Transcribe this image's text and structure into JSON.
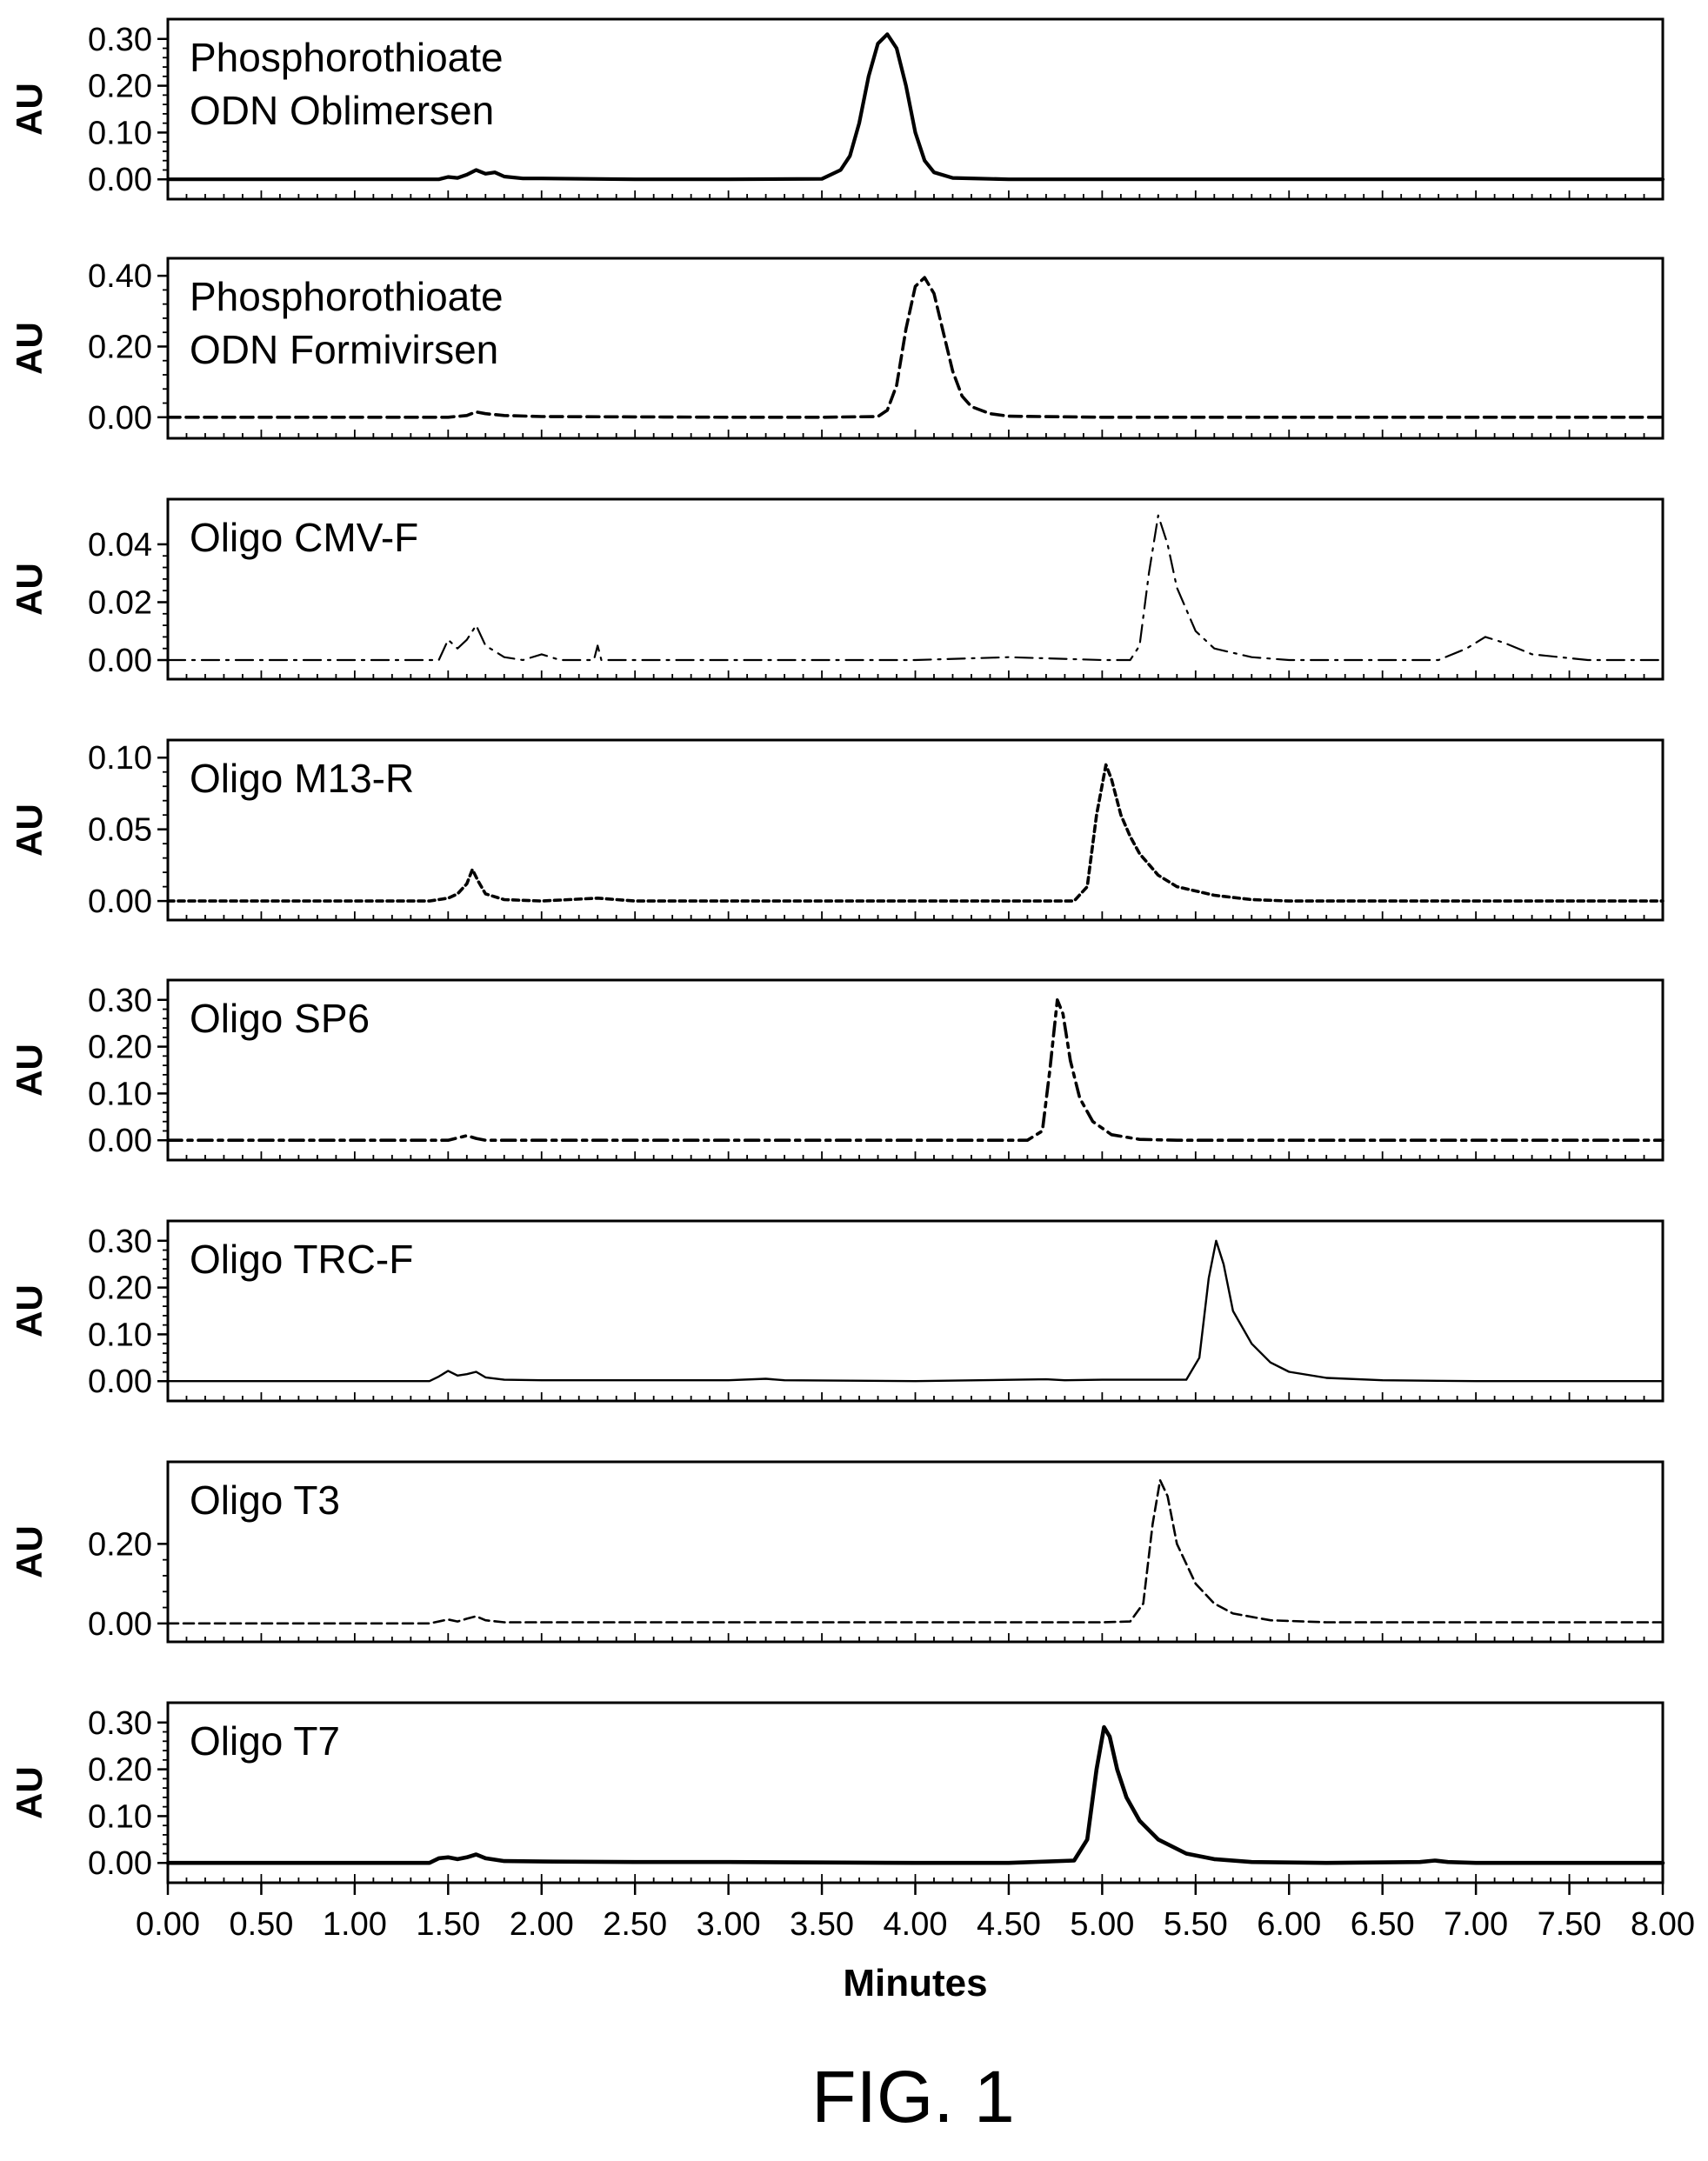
{
  "figure": {
    "caption": "FIG. 1"
  },
  "chart_data": [
    {
      "type": "line",
      "title": [
        "Phosphorothioate",
        "ODN Oblimersen"
      ],
      "ylabel": "AU",
      "yticks": [
        0.0,
        0.1,
        0.2,
        0.3
      ],
      "ytick_labels": [
        "0.00",
        "0.10",
        "0.20",
        "0.30"
      ],
      "ylim": [
        -0.02,
        0.32
      ],
      "line_style": "solid",
      "series": [
        {
          "x": [
            0.0,
            1.45,
            1.5,
            1.55,
            1.6,
            1.65,
            1.7,
            1.75,
            1.8,
            1.9,
            2.0,
            2.5,
            3.0,
            3.5,
            3.6,
            3.65,
            3.7,
            3.75,
            3.8,
            3.85,
            3.9,
            3.95,
            4.0,
            4.05,
            4.1,
            4.2,
            4.5,
            5.0,
            6.0,
            7.0,
            8.0
          ],
          "y": [
            0.0,
            0.0,
            0.005,
            0.003,
            0.01,
            0.02,
            0.012,
            0.015,
            0.006,
            0.002,
            0.002,
            0.0,
            0.0,
            0.001,
            0.02,
            0.05,
            0.12,
            0.22,
            0.29,
            0.31,
            0.28,
            0.2,
            0.1,
            0.04,
            0.015,
            0.003,
            0.0,
            0.0,
            0.0,
            0.0,
            0.0
          ]
        }
      ]
    },
    {
      "type": "line",
      "title": [
        "Phosphorothioate",
        "ODN Formivirsen"
      ],
      "ylabel": "AU",
      "yticks": [
        0.0,
        0.2,
        0.4
      ],
      "ytick_labels": [
        "0.00",
        "0.20",
        "0.40"
      ],
      "ylim": [
        -0.03,
        0.42
      ],
      "line_style": "dashed",
      "series": [
        {
          "x": [
            0.0,
            1.5,
            1.6,
            1.65,
            1.7,
            1.8,
            2.0,
            2.5,
            3.0,
            3.5,
            3.8,
            3.85,
            3.9,
            3.95,
            4.0,
            4.05,
            4.1,
            4.15,
            4.2,
            4.25,
            4.3,
            4.4,
            4.5,
            5.0,
            6.0,
            7.0,
            8.0
          ],
          "y": [
            0.0,
            0.0,
            0.005,
            0.015,
            0.01,
            0.005,
            0.002,
            0.001,
            0.0,
            0.0,
            0.002,
            0.02,
            0.09,
            0.25,
            0.37,
            0.395,
            0.35,
            0.24,
            0.13,
            0.06,
            0.03,
            0.01,
            0.003,
            0.0,
            0.0,
            0.0,
            0.0
          ]
        }
      ]
    },
    {
      "type": "line",
      "title": [
        "Oligo CMV-F"
      ],
      "ylabel": "AU",
      "yticks": [
        0.0,
        0.02,
        0.04
      ],
      "ytick_labels": [
        "0.00",
        "0.02",
        "0.04"
      ],
      "ylim": [
        -0.003,
        0.052
      ],
      "line_style": "dashdot",
      "series": [
        {
          "x": [
            0.0,
            1.4,
            1.45,
            1.5,
            1.55,
            1.6,
            1.65,
            1.7,
            1.75,
            1.8,
            1.9,
            2.0,
            2.05,
            2.1,
            2.28,
            2.3,
            2.32,
            3.0,
            4.0,
            4.5,
            5.0,
            5.15,
            5.2,
            5.25,
            5.3,
            5.35,
            5.4,
            5.5,
            5.6,
            5.8,
            6.0,
            6.5,
            6.8,
            6.95,
            7.05,
            7.15,
            7.3,
            7.6,
            8.0
          ],
          "y": [
            0.0,
            0.0,
            0.0,
            0.007,
            0.004,
            0.007,
            0.012,
            0.005,
            0.003,
            0.001,
            0.0,
            0.002,
            0.001,
            0.0,
            0.0,
            0.005,
            0.0,
            0.0,
            0.0,
            0.001,
            0.0,
            0.0,
            0.005,
            0.03,
            0.05,
            0.04,
            0.025,
            0.01,
            0.004,
            0.001,
            0.0,
            0.0,
            0.0,
            0.004,
            0.008,
            0.006,
            0.002,
            0.0,
            0.0
          ]
        }
      ]
    },
    {
      "type": "line",
      "title": [
        "Oligo M13-R"
      ],
      "ylabel": "AU",
      "yticks": [
        0.0,
        0.05,
        0.1
      ],
      "ytick_labels": [
        "0.00",
        "0.05",
        "0.10"
      ],
      "ylim": [
        -0.006,
        0.105
      ],
      "line_style": "dotted",
      "series": [
        {
          "x": [
            0.0,
            1.4,
            1.5,
            1.55,
            1.6,
            1.63,
            1.66,
            1.7,
            1.8,
            2.0,
            2.3,
            2.5,
            3.0,
            4.0,
            4.85,
            4.92,
            4.97,
            5.02,
            5.05,
            5.1,
            5.15,
            5.2,
            5.3,
            5.4,
            5.6,
            5.8,
            6.0,
            7.0,
            8.0
          ],
          "y": [
            0.0,
            0.0,
            0.002,
            0.005,
            0.012,
            0.022,
            0.014,
            0.005,
            0.001,
            0.0,
            0.002,
            0.0,
            0.0,
            0.0,
            0.0,
            0.01,
            0.06,
            0.095,
            0.085,
            0.06,
            0.045,
            0.033,
            0.018,
            0.01,
            0.004,
            0.001,
            0.0,
            0.0,
            0.0
          ]
        }
      ]
    },
    {
      "type": "line",
      "title": [
        "Oligo SP6"
      ],
      "ylabel": "AU",
      "yticks": [
        0.0,
        0.1,
        0.2,
        0.3
      ],
      "ytick_labels": [
        "0.00",
        "0.10",
        "0.20",
        "0.30"
      ],
      "ylim": [
        -0.02,
        0.32
      ],
      "line_style": "dashdot-heavy",
      "series": [
        {
          "x": [
            0.0,
            1.5,
            1.6,
            1.65,
            1.7,
            2.0,
            3.0,
            4.0,
            4.6,
            4.68,
            4.72,
            4.76,
            4.79,
            4.83,
            4.88,
            4.95,
            5.05,
            5.2,
            5.4,
            6.0,
            7.0,
            8.0
          ],
          "y": [
            0.0,
            0.0,
            0.01,
            0.004,
            0.0,
            0.0,
            0.0,
            0.0,
            0.0,
            0.02,
            0.15,
            0.3,
            0.27,
            0.17,
            0.09,
            0.04,
            0.012,
            0.002,
            0.0,
            0.0,
            0.0,
            0.0
          ]
        }
      ]
    },
    {
      "type": "line",
      "title": [
        "Oligo TRC-F"
      ],
      "ylabel": "AU",
      "yticks": [
        0.0,
        0.1,
        0.2,
        0.3
      ],
      "ytick_labels": [
        "0.00",
        "0.10",
        "0.20",
        "0.30"
      ],
      "ylim": [
        -0.02,
        0.32
      ],
      "line_style": "solid-thin",
      "series": [
        {
          "x": [
            0.0,
            1.4,
            1.45,
            1.5,
            1.55,
            1.6,
            1.65,
            1.7,
            1.8,
            2.0,
            2.5,
            3.0,
            3.2,
            3.3,
            4.0,
            4.7,
            4.8,
            5.0,
            5.45,
            5.52,
            5.57,
            5.61,
            5.65,
            5.7,
            5.8,
            5.9,
            6.0,
            6.2,
            6.5,
            7.0,
            8.0
          ],
          "y": [
            0.0,
            0.0,
            0.01,
            0.022,
            0.012,
            0.015,
            0.02,
            0.008,
            0.003,
            0.002,
            0.002,
            0.002,
            0.005,
            0.002,
            0.0,
            0.004,
            0.002,
            0.003,
            0.003,
            0.05,
            0.22,
            0.3,
            0.25,
            0.15,
            0.08,
            0.04,
            0.02,
            0.007,
            0.002,
            0.0,
            0.0
          ]
        }
      ]
    },
    {
      "type": "line",
      "title": [
        "Oligo T3"
      ],
      "ylabel": "AU",
      "yticks": [
        0.0,
        0.2
      ],
      "ytick_labels": [
        "0.00",
        "0.20"
      ],
      "ylim": [
        -0.02,
        0.38
      ],
      "line_style": "dashed-fine",
      "series": [
        {
          "x": [
            0.0,
            1.4,
            1.5,
            1.55,
            1.6,
            1.65,
            1.7,
            1.8,
            2.0,
            3.0,
            4.0,
            5.0,
            5.15,
            5.22,
            5.27,
            5.31,
            5.35,
            5.4,
            5.5,
            5.6,
            5.7,
            5.9,
            6.2,
            7.0,
            8.0
          ],
          "y": [
            0.0,
            0.0,
            0.01,
            0.005,
            0.012,
            0.018,
            0.008,
            0.003,
            0.003,
            0.003,
            0.003,
            0.003,
            0.005,
            0.05,
            0.25,
            0.36,
            0.32,
            0.2,
            0.1,
            0.05,
            0.025,
            0.008,
            0.003,
            0.003,
            0.003
          ]
        }
      ]
    },
    {
      "type": "line",
      "title": [
        "Oligo T7"
      ],
      "ylabel": "AU",
      "xlabel": "Minutes",
      "yticks": [
        0.0,
        0.1,
        0.2,
        0.3
      ],
      "ytick_labels": [
        "0.00",
        "0.10",
        "0.20",
        "0.30"
      ],
      "ylim": [
        -0.02,
        0.32
      ],
      "line_style": "solid-heavy",
      "series": [
        {
          "x": [
            0.0,
            1.4,
            1.45,
            1.5,
            1.55,
            1.6,
            1.65,
            1.7,
            1.8,
            2.0,
            2.5,
            3.0,
            3.5,
            4.0,
            4.5,
            4.85,
            4.92,
            4.97,
            5.01,
            5.04,
            5.08,
            5.13,
            5.2,
            5.3,
            5.45,
            5.6,
            5.8,
            6.2,
            6.7,
            6.78,
            6.85,
            7.0,
            8.0
          ],
          "y": [
            0.0,
            0.0,
            0.01,
            0.012,
            0.008,
            0.012,
            0.018,
            0.01,
            0.004,
            0.003,
            0.002,
            0.002,
            0.001,
            0.0,
            0.0,
            0.005,
            0.05,
            0.2,
            0.29,
            0.27,
            0.2,
            0.14,
            0.09,
            0.05,
            0.02,
            0.008,
            0.002,
            0.0,
            0.002,
            0.005,
            0.002,
            0.0,
            0.0
          ]
        }
      ]
    }
  ],
  "x_axis": {
    "xlim": [
      0.0,
      8.0
    ],
    "tick_labels": [
      "0.00",
      "0.50",
      "1.00",
      "1.50",
      "2.00",
      "2.50",
      "3.00",
      "3.50",
      "4.00",
      "4.50",
      "5.00",
      "5.50",
      "6.00",
      "6.50",
      "7.00",
      "7.50",
      "8.00"
    ]
  }
}
